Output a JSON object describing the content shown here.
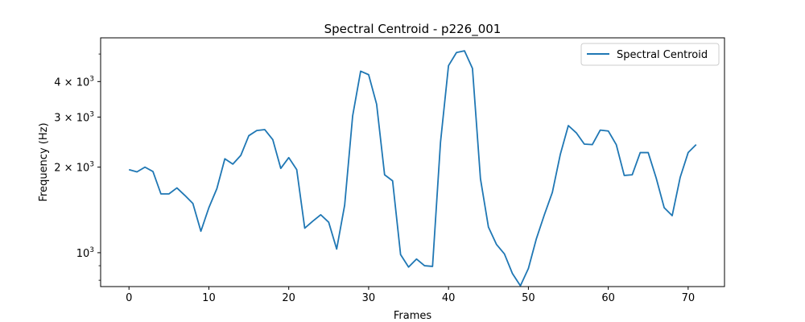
{
  "chart_data": {
    "type": "line",
    "title": "Spectral Centroid - p226_001",
    "xlabel": "Frames",
    "ylabel": "Frequency (Hz)",
    "yscale": "log",
    "xlim": [
      -3.55,
      74.55
    ],
    "ylim": [
      760,
      5700
    ],
    "xticks": [
      0,
      10,
      20,
      30,
      40,
      50,
      60,
      70
    ],
    "yticks": [
      {
        "value": 1000,
        "base": "10",
        "exp": "3"
      },
      {
        "value": 2000,
        "base": "2 × 10",
        "exp": "3"
      },
      {
        "value": 3000,
        "base": "3 × 10",
        "exp": "3"
      },
      {
        "value": 4000,
        "base": "4 × 10",
        "exp": "3"
      }
    ],
    "minor_yticks": [
      800,
      900,
      5000
    ],
    "grid": false,
    "legend_position": "top-right",
    "color": "#1f77b4",
    "series": [
      {
        "name": "Spectral Centroid",
        "x": [
          0,
          1,
          2,
          3,
          4,
          5,
          6,
          7,
          8,
          9,
          10,
          11,
          12,
          13,
          14,
          15,
          16,
          17,
          18,
          19,
          20,
          21,
          22,
          23,
          24,
          25,
          26,
          27,
          28,
          29,
          30,
          31,
          32,
          33,
          34,
          35,
          36,
          37,
          38,
          39,
          40,
          41,
          42,
          43,
          44,
          45,
          46,
          47,
          48,
          49,
          50,
          51,
          52,
          53,
          54,
          55,
          56,
          57,
          58,
          59,
          60,
          61,
          62,
          63,
          64,
          65,
          66,
          67,
          68,
          69,
          70,
          71
        ],
        "y": [
          1960,
          1925,
          2000,
          1930,
          1610,
          1610,
          1690,
          1590,
          1490,
          1190,
          1440,
          1680,
          2140,
          2050,
          2200,
          2580,
          2690,
          2710,
          2500,
          1980,
          2160,
          1960,
          1220,
          1290,
          1360,
          1280,
          1030,
          1470,
          3030,
          4350,
          4230,
          3330,
          1880,
          1790,
          985,
          890,
          950,
          900,
          895,
          2450,
          4550,
          5060,
          5130,
          4450,
          1820,
          1230,
          1070,
          990,
          845,
          765,
          880,
          1120,
          1360,
          1630,
          2220,
          2800,
          2640,
          2410,
          2400,
          2700,
          2680,
          2400,
          1870,
          1880,
          2250,
          2250,
          1830,
          1440,
          1350,
          1840,
          2250,
          2400
        ]
      }
    ]
  }
}
